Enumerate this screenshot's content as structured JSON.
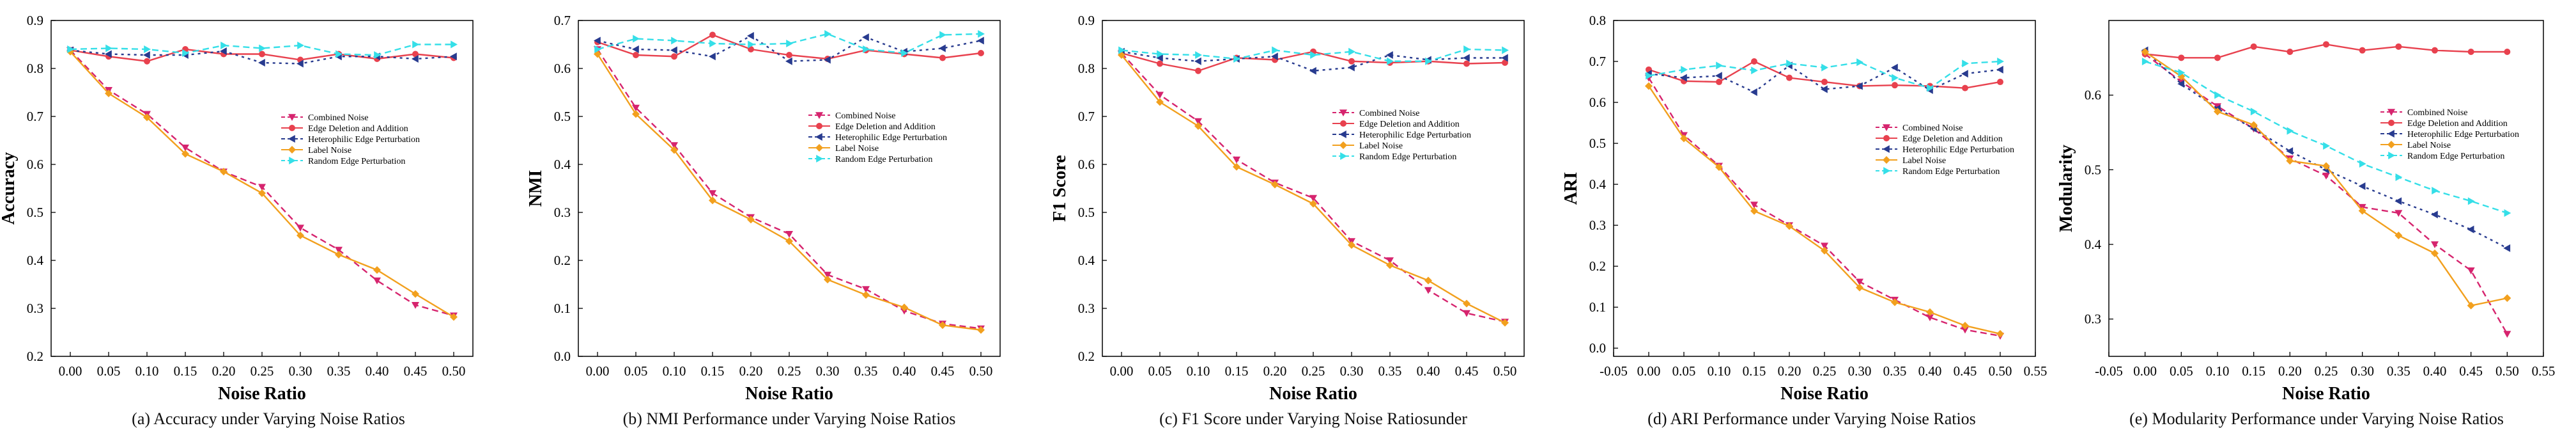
{
  "figure": {
    "captions": [
      "(a) Accuracy under Varying Noise Ratios",
      "(b) NMI Performance under Varying Noise Ratios",
      "(c) F1 Score under Varying Noise Ratiosunder",
      "(d) ARI Performance under Varying Noise Ratios",
      "(e) Modularity Performance under Varying Noise Ratios"
    ],
    "series_styles": [
      {
        "name": "Combined Noise",
        "color": "#d6246e",
        "dash": "10,6",
        "marker": "tri-down"
      },
      {
        "name": "Edge Deletion and Addition",
        "color": "#e8414e",
        "dash": "",
        "marker": "circle"
      },
      {
        "name": "Heterophilic Edge Perturbation",
        "color": "#283b8f",
        "dash": "4,6",
        "marker": "tri-left"
      },
      {
        "name": "Label Noise",
        "color": "#f2a01e",
        "dash": "",
        "marker": "diamond"
      },
      {
        "name": "Random Edge Perturbation",
        "color": "#35dfe8",
        "dash": "10,6",
        "marker": "tri-right"
      }
    ]
  },
  "chart_data": [
    {
      "type": "line",
      "title": "(a) Accuracy under Varying Noise Ratios",
      "xlabel": "Noise Ratio",
      "ylabel": "Accuracy",
      "xlim": [
        -0.025,
        0.525
      ],
      "ylim": [
        0.2,
        0.9
      ],
      "xticks": [
        "0.00",
        "0.05",
        "0.10",
        "0.15",
        "0.20",
        "0.25",
        "0.30",
        "0.35",
        "0.40",
        "0.45",
        "0.50"
      ],
      "yticks": [
        "0.2",
        "0.3",
        "0.4",
        "0.5",
        "0.6",
        "0.7",
        "0.8",
        "0.9"
      ],
      "legend": "center-right",
      "x": [
        0,
        0.05,
        0.1,
        0.15,
        0.2,
        0.25,
        0.3,
        0.35,
        0.4,
        0.45,
        0.5
      ],
      "series": [
        {
          "name": "Combined Noise",
          "values": [
            0.838,
            0.755,
            0.705,
            0.635,
            0.585,
            0.553,
            0.468,
            0.422,
            0.358,
            0.307,
            0.285
          ]
        },
        {
          "name": "Edge Deletion and Addition",
          "values": [
            0.838,
            0.825,
            0.815,
            0.84,
            0.83,
            0.83,
            0.818,
            0.83,
            0.82,
            0.83,
            0.822
          ]
        },
        {
          "name": "Heterophilic Edge Perturbation",
          "values": [
            0.838,
            0.83,
            0.828,
            0.828,
            0.836,
            0.812,
            0.81,
            0.825,
            0.825,
            0.82,
            0.825
          ]
        },
        {
          "name": "Label Noise",
          "values": [
            0.835,
            0.748,
            0.698,
            0.622,
            0.585,
            0.54,
            0.452,
            0.412,
            0.38,
            0.33,
            0.282
          ]
        },
        {
          "name": "Random Edge Perturbation",
          "values": [
            0.84,
            0.842,
            0.84,
            0.832,
            0.848,
            0.842,
            0.848,
            0.83,
            0.828,
            0.85,
            0.85
          ]
        }
      ]
    },
    {
      "type": "line",
      "title": "(b) NMI Performance under Varying Noise Ratios",
      "xlabel": "Noise Ratio",
      "ylabel": "NMI",
      "xlim": [
        -0.025,
        0.525
      ],
      "ylim": [
        0.0,
        0.7
      ],
      "xticks": [
        "0.00",
        "0.05",
        "0.10",
        "0.15",
        "0.20",
        "0.25",
        "0.30",
        "0.35",
        "0.40",
        "0.45",
        "0.50"
      ],
      "yticks": [
        "0.0",
        "0.1",
        "0.2",
        "0.3",
        "0.4",
        "0.5",
        "0.6",
        "0.7"
      ],
      "legend": "center-right",
      "x": [
        0,
        0.05,
        0.1,
        0.15,
        0.2,
        0.25,
        0.3,
        0.35,
        0.4,
        0.45,
        0.5
      ],
      "series": [
        {
          "name": "Combined Noise",
          "values": [
            0.64,
            0.518,
            0.44,
            0.34,
            0.29,
            0.255,
            0.17,
            0.14,
            0.095,
            0.068,
            0.058
          ]
        },
        {
          "name": "Edge Deletion and Addition",
          "values": [
            0.655,
            0.628,
            0.625,
            0.67,
            0.64,
            0.628,
            0.62,
            0.638,
            0.63,
            0.622,
            0.632
          ]
        },
        {
          "name": "Heterophilic Edge Perturbation",
          "values": [
            0.658,
            0.64,
            0.638,
            0.625,
            0.668,
            0.615,
            0.618,
            0.665,
            0.635,
            0.642,
            0.658
          ]
        },
        {
          "name": "Label Noise",
          "values": [
            0.63,
            0.505,
            0.43,
            0.325,
            0.285,
            0.24,
            0.16,
            0.128,
            0.102,
            0.065,
            0.055
          ]
        },
        {
          "name": "Random Edge Perturbation",
          "values": [
            0.64,
            0.662,
            0.658,
            0.652,
            0.65,
            0.652,
            0.672,
            0.64,
            0.632,
            0.67,
            0.672
          ]
        }
      ]
    },
    {
      "type": "line",
      "title": "(c) F1 Score under Varying Noise Ratiosunder",
      "xlabel": "Noise Ratio",
      "ylabel": "F1 Score",
      "xlim": [
        -0.025,
        0.525
      ],
      "ylim": [
        0.2,
        0.9
      ],
      "xticks": [
        "0.00",
        "0.05",
        "0.10",
        "0.15",
        "0.20",
        "0.25",
        "0.30",
        "0.35",
        "0.40",
        "0.45",
        "0.50"
      ],
      "yticks": [
        "0.2",
        "0.3",
        "0.4",
        "0.5",
        "0.6",
        "0.7",
        "0.8",
        "0.9"
      ],
      "legend": "center-right",
      "x": [
        0,
        0.05,
        0.1,
        0.15,
        0.2,
        0.25,
        0.3,
        0.35,
        0.4,
        0.45,
        0.5
      ],
      "series": [
        {
          "name": "Combined Noise",
          "values": [
            0.832,
            0.745,
            0.69,
            0.61,
            0.562,
            0.53,
            0.44,
            0.4,
            0.338,
            0.29,
            0.272
          ]
        },
        {
          "name": "Edge Deletion and Addition",
          "values": [
            0.832,
            0.81,
            0.795,
            0.822,
            0.818,
            0.835,
            0.815,
            0.812,
            0.815,
            0.81,
            0.812
          ]
        },
        {
          "name": "Heterophilic Edge Perturbation",
          "values": [
            0.835,
            0.822,
            0.815,
            0.82,
            0.825,
            0.795,
            0.802,
            0.828,
            0.818,
            0.822,
            0.822
          ]
        },
        {
          "name": "Label Noise",
          "values": [
            0.828,
            0.73,
            0.68,
            0.595,
            0.558,
            0.518,
            0.432,
            0.39,
            0.358,
            0.31,
            0.27
          ]
        },
        {
          "name": "Random Edge Perturbation",
          "values": [
            0.838,
            0.83,
            0.828,
            0.82,
            0.838,
            0.828,
            0.835,
            0.815,
            0.815,
            0.84,
            0.838
          ]
        }
      ]
    },
    {
      "type": "line",
      "title": "(d) ARI Performance under Varying Noise Ratios",
      "xlabel": "Noise Ratio",
      "ylabel": "ARI",
      "xlim": [
        -0.05,
        0.55
      ],
      "ylim": [
        -0.02,
        0.8
      ],
      "xticks": [
        "-0.05",
        "0.00",
        "0.05",
        "0.10",
        "0.15",
        "0.20",
        "0.25",
        "0.30",
        "0.35",
        "0.40",
        "0.45",
        "0.50",
        "0.55"
      ],
      "yticks": [
        "0.0",
        "0.1",
        "0.2",
        "0.3",
        "0.4",
        "0.5",
        "0.6",
        "0.7",
        "0.8"
      ],
      "legend": "center-right",
      "x": [
        0,
        0.05,
        0.1,
        0.15,
        0.2,
        0.25,
        0.3,
        0.35,
        0.4,
        0.45,
        0.5
      ],
      "series": [
        {
          "name": "Combined Noise",
          "values": [
            0.66,
            0.52,
            0.445,
            0.35,
            0.3,
            0.25,
            0.162,
            0.118,
            0.075,
            0.045,
            0.03
          ]
        },
        {
          "name": "Edge Deletion and Addition",
          "values": [
            0.68,
            0.652,
            0.65,
            0.7,
            0.66,
            0.65,
            0.64,
            0.642,
            0.64,
            0.635,
            0.65
          ]
        },
        {
          "name": "Heterophilic Edge Perturbation",
          "values": [
            0.67,
            0.66,
            0.665,
            0.625,
            0.69,
            0.632,
            0.64,
            0.685,
            0.63,
            0.67,
            0.68
          ]
        },
        {
          "name": "Label Noise",
          "values": [
            0.64,
            0.512,
            0.442,
            0.335,
            0.298,
            0.238,
            0.148,
            0.112,
            0.088,
            0.055,
            0.035
          ]
        },
        {
          "name": "Random Edge Perturbation",
          "values": [
            0.665,
            0.68,
            0.69,
            0.678,
            0.695,
            0.685,
            0.698,
            0.66,
            0.635,
            0.695,
            0.7
          ]
        }
      ]
    },
    {
      "type": "line",
      "title": "(e) Modularity Performance under Varying Noise Ratios",
      "xlabel": "Noise Ratio",
      "ylabel": "Modularity",
      "xlim": [
        -0.05,
        0.55
      ],
      "ylim": [
        0.25,
        0.7
      ],
      "xticks": [
        "-0.05",
        "0.00",
        "0.05",
        "0.10",
        "0.15",
        "0.20",
        "0.25",
        "0.30",
        "0.35",
        "0.40",
        "0.45",
        "0.50",
        "0.55"
      ],
      "yticks": [
        "0.3",
        "0.4",
        "0.5",
        "0.6"
      ],
      "legend": "center-right",
      "x": [
        0,
        0.05,
        0.1,
        0.15,
        0.2,
        0.25,
        0.3,
        0.35,
        0.4,
        0.45,
        0.5
      ],
      "series": [
        {
          "name": "Combined Noise",
          "values": [
            0.655,
            0.618,
            0.585,
            0.555,
            0.515,
            0.492,
            0.45,
            0.442,
            0.4,
            0.365,
            0.28
          ]
        },
        {
          "name": "Edge Deletion and Addition",
          "values": [
            0.655,
            0.65,
            0.65,
            0.665,
            0.658,
            0.668,
            0.66,
            0.665,
            0.66,
            0.658,
            0.658
          ]
        },
        {
          "name": "Heterophilic Edge Perturbation",
          "values": [
            0.66,
            0.615,
            0.582,
            0.555,
            0.525,
            0.5,
            0.478,
            0.458,
            0.44,
            0.42,
            0.395
          ]
        },
        {
          "name": "Label Noise",
          "values": [
            0.658,
            0.625,
            0.578,
            0.56,
            0.512,
            0.505,
            0.445,
            0.412,
            0.388,
            0.318,
            0.328
          ]
        },
        {
          "name": "Random Edge Perturbation",
          "values": [
            0.645,
            0.63,
            0.6,
            0.578,
            0.552,
            0.532,
            0.508,
            0.49,
            0.472,
            0.458,
            0.442
          ]
        }
      ]
    }
  ]
}
